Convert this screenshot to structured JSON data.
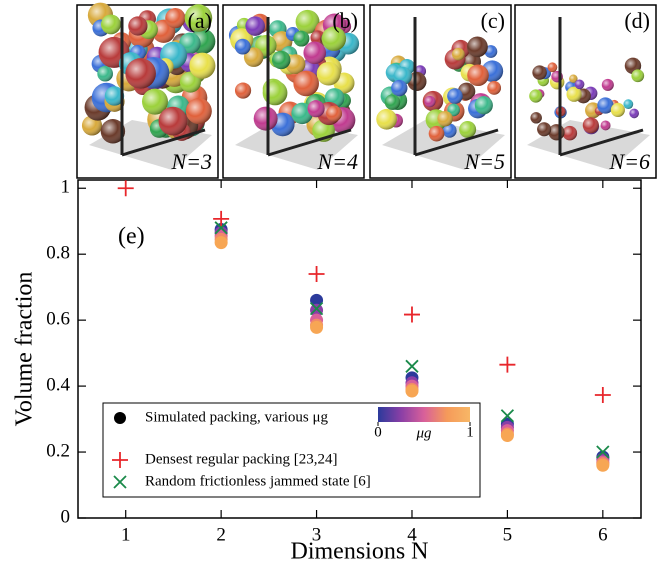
{
  "panels": [
    {
      "label": "(a)",
      "caption": "N=3"
    },
    {
      "label": "(b)",
      "caption": "N=4"
    },
    {
      "label": "(c)",
      "caption": "N=5"
    },
    {
      "label": "(d)",
      "caption": "N=6"
    }
  ],
  "chart_data": {
    "type": "scatter",
    "panel_label": "(e)",
    "xlabel": "Dimensions N",
    "ylabel": "Volume fraction",
    "xlim": [
      0.5,
      6.4
    ],
    "ylim": [
      0,
      1.025
    ],
    "xticks": [
      1,
      2,
      3,
      4,
      5,
      6
    ],
    "yticks": [
      0,
      0.2,
      0.4,
      0.6,
      0.8,
      1
    ],
    "legend": "lower left",
    "colorbar": {
      "label": "μg",
      "ticks": [
        0,
        1
      ],
      "colors": [
        "#2b3a9b",
        "#8a3fa6",
        "#d8609a",
        "#f59a5a",
        "#f7b766"
      ]
    },
    "series": [
      {
        "name": "Simulated packing, various μg",
        "marker": "circle",
        "color": "#000000",
        "x": [
          2,
          2,
          2,
          2,
          2,
          3,
          3,
          3,
          3,
          3,
          4,
          4,
          4,
          4,
          4,
          5,
          5,
          5,
          5,
          5,
          6,
          6,
          6,
          6,
          6
        ],
        "values": [
          0.875,
          0.865,
          0.855,
          0.845,
          0.835,
          0.66,
          0.63,
          0.6,
          0.585,
          0.578,
          0.425,
          0.41,
          0.4,
          0.39,
          0.385,
          0.285,
          0.275,
          0.265,
          0.255,
          0.25,
          0.185,
          0.178,
          0.17,
          0.165,
          0.16
        ],
        "colors": [
          "#2b3a9b",
          "#8a3fa6",
          "#d8609a",
          "#f08a68",
          "#f7a654",
          "#2b3a9b",
          "#8a3fa6",
          "#d8609a",
          "#f08a68",
          "#f7a654",
          "#2b3a9b",
          "#8a3fa6",
          "#d8609a",
          "#f08a68",
          "#f7a654",
          "#2b3a9b",
          "#8a3fa6",
          "#d8609a",
          "#f08a68",
          "#f7a654",
          "#2b3a9b",
          "#8a3fa6",
          "#d8609a",
          "#f08a68",
          "#f7a654"
        ]
      },
      {
        "name": "Densest regular packing [23,24]",
        "marker": "plus",
        "color": "#e8262b",
        "x": [
          1,
          2,
          3,
          4,
          5,
          6
        ],
        "values": [
          1,
          0.907,
          0.74,
          0.617,
          0.465,
          0.373
        ]
      },
      {
        "name": "Random frictionless jammed state [6]",
        "marker": "cross",
        "color": "#1a8a4a",
        "x": [
          2,
          3,
          4,
          5,
          6
        ],
        "values": [
          0.88,
          0.635,
          0.46,
          0.31,
          0.2
        ]
      }
    ]
  }
}
